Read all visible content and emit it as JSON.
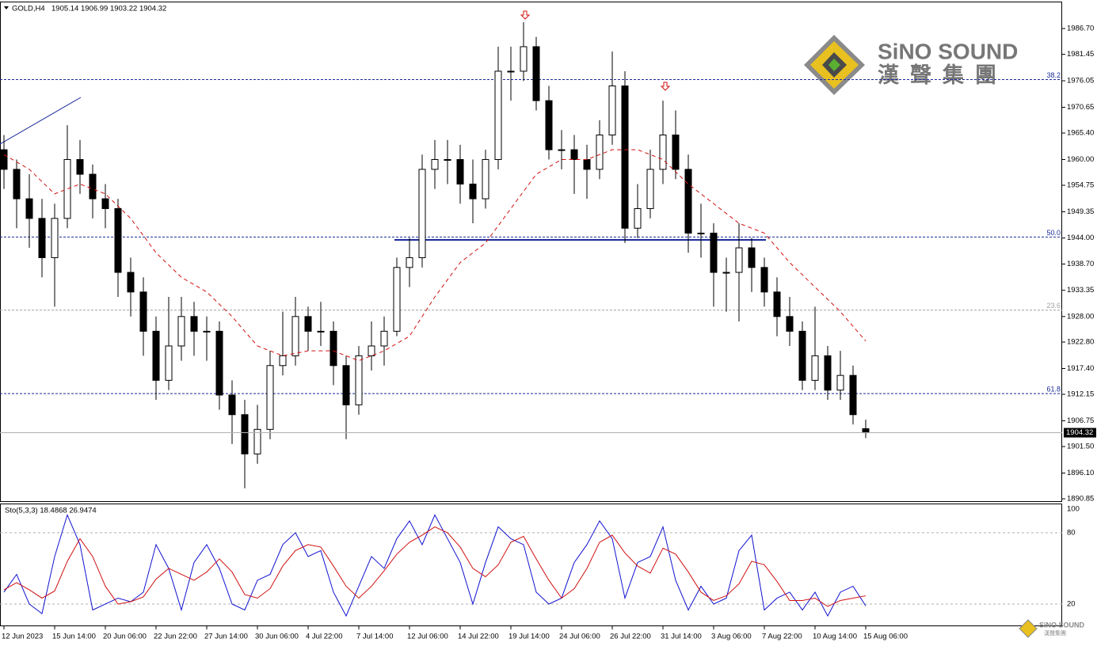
{
  "chart_data": {
    "type": "candlestick",
    "title": "GOLD,H4",
    "ohlc_text": "1905.14 1906.99 1903.22 1904.32",
    "open": [
      1962,
      1958,
      1952,
      1948,
      1940,
      1948,
      1960,
      1957,
      1952,
      1950,
      1937,
      1933,
      1925,
      1915,
      1922,
      1928,
      1925,
      1925,
      1912,
      1908,
      1900,
      1905,
      1918,
      1920,
      1928,
      1925,
      1925,
      1918,
      1910,
      1920,
      1922,
      1925,
      1938,
      1940,
      1958,
      1960,
      1960,
      1955,
      1952,
      1960,
      1978,
      1978,
      1983,
      1972,
      1962,
      1962,
      1960,
      1958,
      1965,
      1975,
      1946,
      1950,
      1958,
      1965,
      1958,
      1945,
      1945,
      1937,
      1937,
      1942,
      1938,
      1933,
      1928,
      1925,
      1915,
      1920,
      1913,
      1916,
      1905.14
    ],
    "high": [
      1965,
      1960,
      1957,
      1952,
      1951,
      1967,
      1964,
      1959,
      1955,
      1952,
      1940,
      1936,
      1928,
      1932,
      1932,
      1931,
      1928,
      1927,
      1915,
      1911,
      1910,
      1921,
      1929,
      1932,
      1930,
      1931,
      1927,
      1920,
      1922,
      1927,
      1928,
      1940,
      1944,
      1961,
      1964,
      1964,
      1963,
      1960,
      1962,
      1983,
      1983,
      1988,
      1985,
      1975,
      1966,
      1965,
      1963,
      1968,
      1982,
      1978,
      1955,
      1962,
      1972,
      1970,
      1961,
      1951,
      1947,
      1940,
      1947,
      1944,
      1940,
      1936,
      1932,
      1927,
      1930,
      1922,
      1921,
      1918,
      1906.99
    ],
    "low": [
      1954,
      1946,
      1942,
      1936,
      1930,
      1946,
      1953,
      1948,
      1946,
      1932,
      1928,
      1920,
      1911,
      1913,
      1919,
      1920,
      1919,
      1909,
      1902,
      1893,
      1898,
      1903,
      1916,
      1918,
      1921,
      1922,
      1914,
      1903,
      1908,
      1917,
      1918,
      1924,
      1934,
      1938,
      1954,
      1955,
      1951,
      1947,
      1950,
      1958,
      1972,
      1976,
      1970,
      1960,
      1958,
      1953,
      1952,
      1956,
      1963,
      1943,
      1944,
      1948,
      1955,
      1956,
      1941,
      1940,
      1930,
      1929,
      1927,
      1933,
      1930,
      1924,
      1922,
      1913,
      1913,
      1911,
      1911,
      1906,
      1903.22
    ],
    "close": [
      1958,
      1952,
      1948,
      1940,
      1948,
      1960,
      1957,
      1952,
      1950,
      1937,
      1933,
      1925,
      1915,
      1922,
      1928,
      1925,
      1925,
      1912,
      1908,
      1900,
      1905,
      1918,
      1920,
      1928,
      1925,
      1925,
      1918,
      1910,
      1920,
      1922,
      1925,
      1938,
      1940,
      1958,
      1960,
      1960,
      1955,
      1952,
      1960,
      1978,
      1978,
      1983,
      1972,
      1962,
      1962,
      1960,
      1958,
      1965,
      1975,
      1946,
      1950,
      1958,
      1965,
      1958,
      1945,
      1945,
      1937,
      1937,
      1942,
      1938,
      1933,
      1928,
      1925,
      1915,
      1920,
      1913,
      1916,
      1908,
      1904.32
    ],
    "moving_average": {
      "color": "#d01010",
      "x": [
        0,
        2,
        4,
        6,
        8,
        10,
        12,
        14,
        16,
        18,
        20,
        22,
        24,
        26,
        28,
        30,
        32,
        34,
        36,
        38,
        40,
        42,
        44,
        46,
        48,
        50,
        52,
        54,
        56,
        58,
        60,
        62,
        64,
        66,
        68
      ],
      "values": [
        1961,
        1958,
        1953,
        1955,
        1953,
        1948,
        1941,
        1936,
        1933,
        1928,
        1922,
        1920,
        1921,
        1921,
        1919,
        1921,
        1924,
        1932,
        1939,
        1943,
        1950,
        1957,
        1960,
        1960,
        1962,
        1962,
        1960,
        1955,
        1951,
        1947,
        1945,
        1939,
        1934,
        1929,
        1923
      ]
    },
    "ylim": [
      1890.37,
      1992.03
    ],
    "yticks": [
      {
        "value": 1986.7,
        "label": "1986.70"
      },
      {
        "value": 1981.45,
        "label": "1981.45"
      },
      {
        "value": 1976.05,
        "label": "1976.05"
      },
      {
        "value": 1970.65,
        "label": "1970.65"
      },
      {
        "value": 1965.4,
        "label": "1965.40"
      },
      {
        "value": 1960,
        "label": "1960.00"
      },
      {
        "value": 1954.75,
        "label": "1954.75"
      },
      {
        "value": 1949.35,
        "label": "1949.35"
      },
      {
        "value": 1944,
        "label": "1944.00"
      },
      {
        "value": 1938.7,
        "label": "1938.70"
      },
      {
        "value": 1933.35,
        "label": "1933.35"
      },
      {
        "value": 1928,
        "label": "1928.00"
      },
      {
        "value": 1922.8,
        "label": "1922.80"
      },
      {
        "value": 1917.4,
        "label": "1917.40"
      },
      {
        "value": 1912.15,
        "label": "1912.15"
      },
      {
        "value": 1906.75,
        "label": "1906.75"
      },
      {
        "value": 1901.5,
        "label": "1901.50"
      },
      {
        "value": 1896.1,
        "label": "1896.10"
      },
      {
        "value": 1890.85,
        "label": "1890.85"
      }
    ],
    "xticks": [
      {
        "value": 0,
        "label": "12 Jun 2023"
      },
      {
        "value": 4,
        "label": "15 Jun 14:00"
      },
      {
        "value": 8,
        "label": "20 Jun 06:00"
      },
      {
        "value": 12,
        "label": "22 Jun 22:00"
      },
      {
        "value": 16,
        "label": "27 Jun 14:00"
      },
      {
        "value": 20,
        "label": "30 Jun 06:00"
      },
      {
        "value": 24,
        "label": "4 Jul 22:00"
      },
      {
        "value": 28,
        "label": "7 Jul 14:00"
      },
      {
        "value": 32,
        "label": "12 Jul 06:00"
      },
      {
        "value": 36,
        "label": "14 Jul 22:00"
      },
      {
        "value": 40,
        "label": "19 Jul 14:00"
      },
      {
        "value": 44,
        "label": "24 Jul 06:00"
      },
      {
        "value": 48,
        "label": "26 Jul 22:00"
      },
      {
        "value": 52,
        "label": "31 Jul 14:00"
      },
      {
        "value": 56,
        "label": "3 Aug 06:00"
      },
      {
        "value": 60,
        "label": "7 Aug 22:00"
      },
      {
        "value": 64,
        "label": "10 Aug 14:00"
      },
      {
        "value": 68,
        "label": "15 Aug 06:00"
      }
    ],
    "levels": [
      {
        "price": 1976.3,
        "label": "38.2",
        "color": "#1a2a9a"
      },
      {
        "price": 1944.2,
        "label": "50.0",
        "color": "#1a2a9a"
      },
      {
        "price": 1929.3,
        "label": "23.6",
        "color": "#a0a0a0"
      },
      {
        "price": 1912.3,
        "label": "61.8",
        "color": "#1a2a9a"
      }
    ],
    "stochastic": {
      "label": "Sto(5,3,3) 18.4868 26.9474",
      "ylim": [
        2,
        104.6
      ],
      "yticks": [
        100,
        80,
        20
      ],
      "series": [
        {
          "color": "#1010d0",
          "values": [
            30,
            45,
            20,
            12,
            60,
            95,
            70,
            15,
            20,
            25,
            22,
            30,
            70,
            50,
            15,
            55,
            70,
            50,
            20,
            15,
            40,
            45,
            70,
            80,
            60,
            65,
            30,
            10,
            35,
            60,
            50,
            75,
            90,
            70,
            95,
            75,
            55,
            20,
            55,
            85,
            75,
            70,
            30,
            20,
            25,
            55,
            70,
            90,
            75,
            25,
            55,
            60,
            85,
            40,
            15,
            35,
            20,
            25,
            65,
            78,
            15,
            25,
            30,
            15,
            30,
            10,
            30,
            35,
            18.4868
          ]
        },
        {
          "color": "#d01010",
          "values": [
            32,
            38,
            32,
            25,
            31,
            56,
            75,
            60,
            35,
            20,
            22,
            26,
            41,
            50,
            45,
            40,
            47,
            58,
            47,
            28,
            25,
            33,
            52,
            65,
            70,
            68,
            52,
            35,
            25,
            35,
            48,
            62,
            72,
            78,
            85,
            80,
            68,
            50,
            43,
            53,
            72,
            77,
            58,
            40,
            25,
            33,
            50,
            72,
            78,
            63,
            52,
            46,
            67,
            62,
            47,
            30,
            23,
            27,
            37,
            56,
            53,
            39,
            23,
            23,
            25,
            18,
            23,
            25,
            26.9474
          ]
        }
      ]
    },
    "brand": {
      "name": "SiNO SOUND",
      "chinese": "漢聲集團"
    }
  }
}
